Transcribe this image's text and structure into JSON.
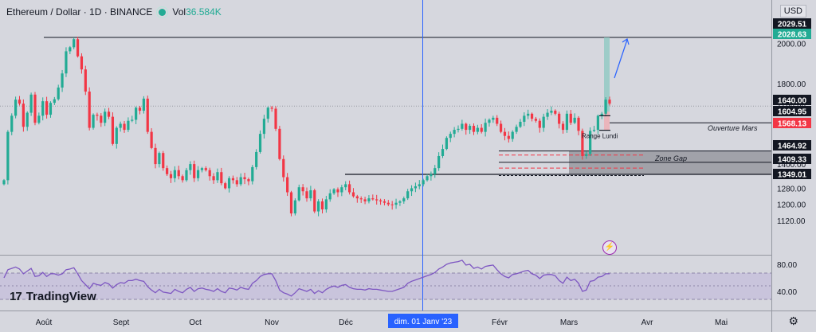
{
  "header": {
    "symbol": "Ethereum / Dollar · 1D · BINANCE",
    "vol_label": "Vol",
    "vol_value": "36.584K"
  },
  "currency": "USD",
  "brand": "TradingView",
  "colors": {
    "up": "#22ab94",
    "down": "#f23645",
    "rsi": "#7e57c2",
    "crosshair": "#2962ff",
    "annotation": "#2962ff"
  },
  "icons": {
    "settings": "gear-icon",
    "event": "lightning-icon"
  },
  "chart_data": {
    "type": "candlestick",
    "price_axis": {
      "ticks": [
        "2000.00",
        "1800.00",
        "1700.00",
        "1600.00",
        "1500.00",
        "1400.00",
        "1280.00",
        "1200.00",
        "1120.00"
      ],
      "labels": [
        {
          "text": "2029.51",
          "style": "dark"
        },
        {
          "text": "2028.63",
          "style": "green"
        },
        {
          "text": "1640.00",
          "style": "dark"
        },
        {
          "text": "1604.95",
          "style": "dark"
        },
        {
          "text": "1568.13",
          "style": "red"
        },
        {
          "text": "1464.92",
          "style": "dark"
        },
        {
          "text": "1409.33",
          "style": "dark"
        },
        {
          "text": "1349.01",
          "style": "dark"
        }
      ]
    },
    "rsi_axis": {
      "ticks": [
        "80.00",
        "40.00"
      ]
    },
    "time_axis": {
      "ticks": [
        "Août",
        "Sept",
        "Oct",
        "Nov",
        "Déc",
        "Févr",
        "Mars",
        "Avr",
        "Mai"
      ],
      "crosshair_label": "dim. 01 Janv '23"
    },
    "levels": [
      {
        "name": "high",
        "price": 2029
      },
      {
        "name": "ouverture",
        "price": 1605
      },
      {
        "name": "gap-top",
        "price": 1465
      },
      {
        "name": "gap-mid",
        "price": 1409
      },
      {
        "name": "gap-bottom",
        "price": 1349
      },
      {
        "name": "support",
        "price": 1349
      }
    ],
    "annotations": {
      "ouverture": "Ouverture Mars",
      "zone_gap": "Zone Gap",
      "lundi": "Range Lundi"
    },
    "closes": [
      1320,
      1560,
      1640,
      1720,
      1700,
      1585,
      1655,
      1745,
      1605,
      1640,
      1712,
      1645,
      1704,
      1722,
      1780,
      1850,
      1960,
      1980,
      2020,
      1935,
      1870,
      1760,
      1580,
      1645,
      1640,
      1605,
      1660,
      1635,
      1500,
      1580,
      1600,
      1570,
      1615,
      1620,
      1680,
      1665,
      1725,
      1560,
      1480,
      1400,
      1455,
      1380,
      1350,
      1330,
      1370,
      1340,
      1320,
      1370,
      1400,
      1330,
      1370,
      1380,
      1370,
      1340,
      1320,
      1360,
      1305,
      1280,
      1330,
      1320,
      1300,
      1335,
      1325,
      1315,
      1385,
      1460,
      1550,
      1625,
      1680,
      1675,
      1575,
      1425,
      1335,
      1260,
      1155,
      1220,
      1285,
      1265,
      1230,
      1270,
      1165,
      1215,
      1175,
      1225,
      1255,
      1275,
      1260,
      1285,
      1300,
      1260,
      1240,
      1230,
      1225,
      1215,
      1230,
      1225,
      1220,
      1215,
      1208,
      1200,
      1198,
      1208,
      1215,
      1230,
      1265,
      1280,
      1290,
      1300,
      1320,
      1340,
      1350,
      1380,
      1440,
      1475,
      1530,
      1550,
      1570,
      1575,
      1600,
      1570,
      1590,
      1560,
      1580,
      1560,
      1605,
      1620,
      1630,
      1600,
      1560,
      1540,
      1525,
      1560,
      1585,
      1610,
      1640,
      1650,
      1625,
      1615,
      1580,
      1635,
      1655,
      1665,
      1650,
      1600,
      1570,
      1650,
      1605,
      1630,
      1565,
      1440,
      1450,
      1565,
      1570,
      1640,
      1650,
      1720,
      1700
    ],
    "rsi": [
      60,
      72,
      74,
      76,
      73,
      66,
      70,
      74,
      62,
      63,
      68,
      62,
      66,
      66,
      64,
      66,
      72,
      73,
      75,
      66,
      56,
      50,
      44,
      52,
      50,
      49,
      53,
      51,
      45,
      50,
      53,
      52,
      56,
      56,
      58,
      56,
      55,
      47,
      42,
      38,
      43,
      39,
      38,
      37,
      43,
      40,
      38,
      43,
      46,
      40,
      44,
      45,
      43,
      42,
      40,
      44,
      40,
      38,
      45,
      44,
      42,
      46,
      44,
      43,
      52,
      56,
      62,
      65,
      66,
      66,
      56,
      42,
      38,
      36,
      33,
      38,
      44,
      42,
      40,
      43,
      37,
      41,
      38,
      43,
      46,
      48,
      46,
      49,
      50,
      46,
      44,
      43,
      43,
      42,
      44,
      43,
      43,
      42,
      41,
      40,
      40,
      42,
      44,
      46,
      52,
      55,
      57,
      59,
      61,
      63,
      65,
      68,
      73,
      76,
      80,
      82,
      83,
      84,
      86,
      79,
      80,
      74,
      76,
      73,
      77,
      78,
      79,
      72,
      66,
      62,
      60,
      65,
      66,
      68,
      70,
      71,
      66,
      64,
      59,
      64,
      65,
      65,
      63,
      56,
      52,
      61,
      56,
      58,
      52,
      40,
      42,
      55,
      56,
      61,
      62,
      66,
      66
    ]
  }
}
